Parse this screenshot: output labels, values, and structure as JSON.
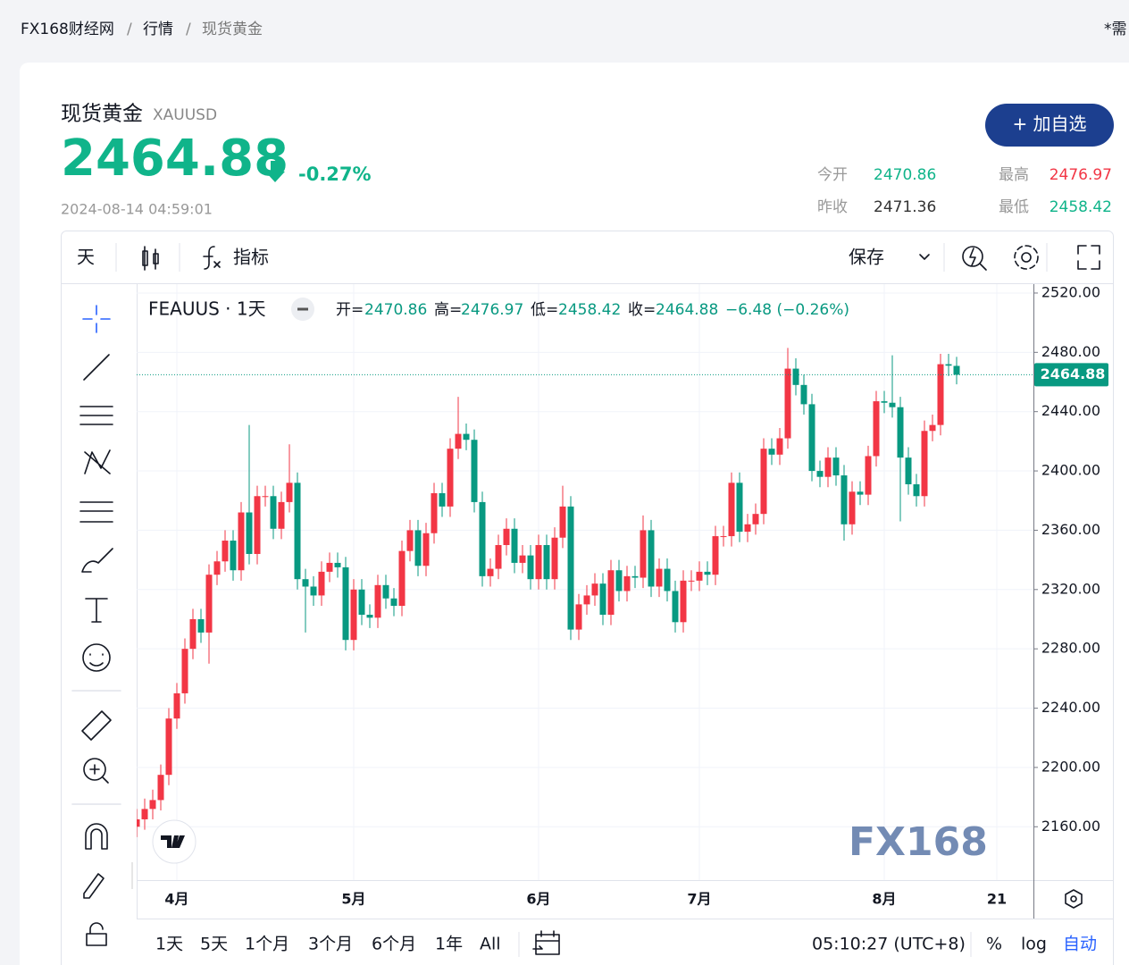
{
  "breadcrumb": [
    "FX168财经网",
    "行情",
    "现货黄金"
  ],
  "notice": "*需",
  "quote": {
    "name": "现货黄金",
    "code": "XAUUSD",
    "price": "2464.88",
    "change": "-0.27%",
    "time": "2024-08-14 04:59:01",
    "button": "+ 加自选",
    "stats": [
      {
        "label": "今开",
        "value": "2470.86"
      },
      {
        "label": "最高",
        "value": "2476.97"
      },
      {
        "label": "昨收",
        "value": "2471.36"
      },
      {
        "label": "最低",
        "value": "2458.42"
      }
    ]
  },
  "toolbar": {
    "interval": "天",
    "indicators": "指标",
    "save": "保存"
  },
  "bottom_bar": {
    "ranges": [
      "1天",
      "5天",
      "1个月",
      "3个月",
      "6个月",
      "1年",
      "All"
    ],
    "clock": "05:10:27 (UTC+8)",
    "percent": "%",
    "log": "log",
    "auto": "自动"
  },
  "chart_data": {
    "type": "candlestick",
    "symbol": "FEAUUS · 1天",
    "ohlc_labels": [
      "开=",
      "高=",
      "低=",
      "收="
    ],
    "change": "−6.48 (−0.26%)",
    "watermark": "FX168",
    "up_color": "#f23645",
    "down_color": "#089981",
    "open": [
      2160,
      2165,
      2172,
      2178,
      2195,
      2233,
      2250,
      2280,
      2300,
      2291,
      2330,
      2339,
      2353,
      2333,
      2372,
      2344,
      2383,
      2383,
      2361,
      2379,
      2392,
      2327,
      2322,
      2316,
      2332,
      2338,
      2335,
      2286,
      2320,
      2303,
      2301,
      2323,
      2314,
      2309,
      2346,
      2360,
      2336,
      2358,
      2385,
      2376,
      2415,
      2425,
      2421,
      2379,
      2329,
      2334,
      2350,
      2361,
      2338,
      2343,
      2327,
      2350,
      2327,
      2355,
      2376,
      2293,
      2310,
      2316,
      2324,
      2303,
      2333,
      2319,
      2329,
      2328,
      2360,
      2322,
      2334,
      2319,
      2298,
      2326,
      2326,
      2332,
      2330,
      2356,
      2356,
      2392,
      2359,
      2364,
      2371,
      2415,
      2411,
      2422,
      2469,
      2458,
      2445,
      2400,
      2396,
      2409,
      2397,
      2364,
      2386,
      2384,
      2410,
      2447,
      2446,
      2443,
      2409,
      2391,
      2383,
      2427,
      2431,
      2472,
      2470.86
    ],
    "high": [
      2172,
      2179,
      2185,
      2202,
      2240,
      2257,
      2287,
      2307,
      2307,
      2337,
      2346,
      2360,
      2360,
      2379,
      2431,
      2390,
      2390,
      2390,
      2386,
      2418,
      2399,
      2334,
      2329,
      2339,
      2345,
      2345,
      2342,
      2327,
      2327,
      2310,
      2330,
      2330,
      2321,
      2353,
      2367,
      2367,
      2365,
      2392,
      2392,
      2422,
      2450,
      2432,
      2428,
      2386,
      2341,
      2357,
      2368,
      2368,
      2350,
      2350,
      2357,
      2357,
      2362,
      2390,
      2383,
      2317,
      2323,
      2331,
      2331,
      2340,
      2340,
      2336,
      2336,
      2370,
      2367,
      2341,
      2341,
      2326,
      2333,
      2333,
      2339,
      2339,
      2363,
      2363,
      2399,
      2399,
      2371,
      2378,
      2422,
      2422,
      2429,
      2483,
      2476,
      2465,
      2452,
      2407,
      2416,
      2416,
      2404,
      2393,
      2393,
      2417,
      2454,
      2454,
      2478,
      2450,
      2416,
      2398,
      2434,
      2438,
      2479,
      2479,
      2476.97
    ],
    "low": [
      2153,
      2158,
      2165,
      2171,
      2188,
      2226,
      2243,
      2273,
      2284,
      2270,
      2323,
      2332,
      2326,
      2326,
      2337,
      2337,
      2376,
      2354,
      2354,
      2372,
      2320,
      2291,
      2309,
      2309,
      2325,
      2328,
      2279,
      2279,
      2296,
      2294,
      2294,
      2307,
      2302,
      2302,
      2339,
      2329,
      2329,
      2351,
      2369,
      2369,
      2408,
      2414,
      2372,
      2322,
      2322,
      2327,
      2343,
      2331,
      2331,
      2320,
      2320,
      2320,
      2320,
      2348,
      2286,
      2286,
      2303,
      2309,
      2296,
      2296,
      2312,
      2312,
      2321,
      2321,
      2315,
      2315,
      2312,
      2291,
      2291,
      2319,
      2319,
      2323,
      2323,
      2349,
      2349,
      2352,
      2352,
      2357,
      2364,
      2404,
      2404,
      2415,
      2451,
      2438,
      2393,
      2389,
      2389,
      2390,
      2353,
      2357,
      2377,
      2377,
      2403,
      2439,
      2436,
      2366,
      2384,
      2376,
      2376,
      2420,
      2424,
      2464,
      2458.42
    ],
    "close": [
      2165,
      2172,
      2178,
      2195,
      2233,
      2250,
      2280,
      2300,
      2291,
      2330,
      2339,
      2353,
      2333,
      2372,
      2344,
      2383,
      2383,
      2361,
      2379,
      2392,
      2327,
      2322,
      2316,
      2332,
      2338,
      2335,
      2286,
      2320,
      2303,
      2301,
      2323,
      2314,
      2309,
      2346,
      2360,
      2336,
      2358,
      2385,
      2376,
      2415,
      2425,
      2421,
      2379,
      2329,
      2334,
      2350,
      2361,
      2338,
      2343,
      2327,
      2350,
      2327,
      2355,
      2376,
      2293,
      2310,
      2316,
      2324,
      2303,
      2333,
      2319,
      2329,
      2328,
      2360,
      2322,
      2334,
      2319,
      2298,
      2326,
      2326,
      2332,
      2330,
      2356,
      2356,
      2392,
      2359,
      2364,
      2371,
      2415,
      2411,
      2422,
      2469,
      2458,
      2445,
      2400,
      2396,
      2409,
      2397,
      2364,
      2386,
      2384,
      2410,
      2447,
      2446,
      2443,
      2409,
      2391,
      2383,
      2427,
      2431,
      2472,
      2471,
      2464.88
    ],
    "ylim": [
      2124,
      2526
    ],
    "yticks": [
      {
        "value": 2160,
        "label": "2160.00"
      },
      {
        "value": 2200,
        "label": "2200.00"
      },
      {
        "value": 2240,
        "label": "2240.00"
      },
      {
        "value": 2280,
        "label": "2280.00"
      },
      {
        "value": 2320,
        "label": "2320.00"
      },
      {
        "value": 2360,
        "label": "2360.00"
      },
      {
        "value": 2400,
        "label": "2400.00"
      },
      {
        "value": 2440,
        "label": "2440.00"
      },
      {
        "value": 2480,
        "label": "2480.00"
      },
      {
        "value": 2520,
        "label": "2520.00"
      }
    ],
    "xticks": [
      {
        "value": 5,
        "label": "4月"
      },
      {
        "value": 27,
        "label": "5月"
      },
      {
        "value": 50,
        "label": "6月"
      },
      {
        "value": 70,
        "label": "7月"
      },
      {
        "value": 93,
        "label": "8月"
      },
      {
        "value": 107,
        "label": "21"
      }
    ],
    "grid": true
  }
}
